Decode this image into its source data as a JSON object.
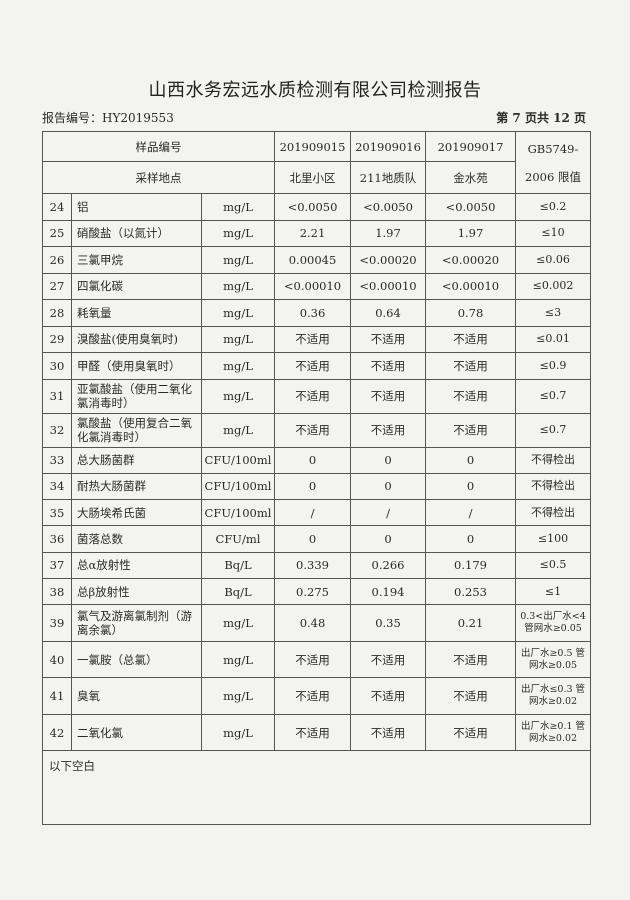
{
  "title": "山西水务宏远水质检测有限公司检测报告",
  "report_no": "报告编号：HY2019553",
  "page_info": "第 7 页共 12 页",
  "header": {
    "sample_no_label": "样品编号",
    "site_label": "采样地点",
    "samples": [
      "201909015",
      "201909016",
      "201909017"
    ],
    "sites": [
      "北里小区",
      "211地质队",
      "金水苑"
    ],
    "standard_line1": "GB5749-",
    "standard_line2": "2006 限值"
  },
  "rows": [
    {
      "no": "24",
      "item": "铝",
      "unit": "mg/L",
      "v1": "<0.0050",
      "v2": "<0.0050",
      "v3": "<0.0050",
      "limit": "≤0.2"
    },
    {
      "no": "25",
      "item": "硝酸盐（以氮计）",
      "unit": "mg/L",
      "v1": "2.21",
      "v2": "1.97",
      "v3": "1.97",
      "limit": "≤10"
    },
    {
      "no": "26",
      "item": "三氯甲烷",
      "unit": "mg/L",
      "v1": "0.00045",
      "v2": "<0.00020",
      "v3": "<0.00020",
      "limit": "≤0.06"
    },
    {
      "no": "27",
      "item": "四氯化碳",
      "unit": "mg/L",
      "v1": "<0.00010",
      "v2": "<0.00010",
      "v3": "<0.00010",
      "limit": "≤0.002"
    },
    {
      "no": "28",
      "item": "耗氧量",
      "unit": "mg/L",
      "v1": "0.36",
      "v2": "0.64",
      "v3": "0.78",
      "limit": "≤3"
    },
    {
      "no": "29",
      "item": "溴酸盐(使用臭氧时)",
      "unit": "mg/L",
      "v1": "不适用",
      "v2": "不适用",
      "v3": "不适用",
      "limit": "≤0.01"
    },
    {
      "no": "30",
      "item": "甲醛（使用臭氧时）",
      "unit": "mg/L",
      "v1": "不适用",
      "v2": "不适用",
      "v3": "不适用",
      "limit": "≤0.9"
    },
    {
      "no": "31",
      "item": "亚氯酸盐（使用二氧化氯消毒时）",
      "unit": "mg/L",
      "v1": "不适用",
      "v2": "不适用",
      "v3": "不适用",
      "limit": "≤0.7"
    },
    {
      "no": "32",
      "item": "氯酸盐（使用复合二氧化氯消毒时）",
      "unit": "mg/L",
      "v1": "不适用",
      "v2": "不适用",
      "v3": "不适用",
      "limit": "≤0.7"
    },
    {
      "no": "33",
      "item": "总大肠菌群",
      "unit": "CFU/100ml",
      "v1": "0",
      "v2": "0",
      "v3": "0",
      "limit": "不得检出"
    },
    {
      "no": "34",
      "item": "耐热大肠菌群",
      "unit": "CFU/100ml",
      "v1": "0",
      "v2": "0",
      "v3": "0",
      "limit": "不得检出"
    },
    {
      "no": "35",
      "item": "大肠埃希氏菌",
      "unit": "CFU/100ml",
      "v1": "/",
      "v2": "/",
      "v3": "/",
      "limit": "不得检出"
    },
    {
      "no": "36",
      "item": "菌落总数",
      "unit": "CFU/ml",
      "v1": "0",
      "v2": "0",
      "v3": "0",
      "limit": "≤100"
    },
    {
      "no": "37",
      "item": "总α放射性",
      "unit": "Bq/L",
      "v1": "0.339",
      "v2": "0.266",
      "v3": "0.179",
      "limit": "≤0.5"
    },
    {
      "no": "38",
      "item": "总β放射性",
      "unit": "Bq/L",
      "v1": "0.275",
      "v2": "0.194",
      "v3": "0.253",
      "limit": "≤1"
    },
    {
      "no": "39",
      "item": "氯气及游离氯制剂（游离余氯）",
      "unit": "mg/L",
      "v1": "0.48",
      "v2": "0.35",
      "v3": "0.21",
      "limit": "0.3<出厂水<4 管网水≥0.05"
    },
    {
      "no": "40",
      "item": "一氯胺（总氯）",
      "unit": "mg/L",
      "v1": "不适用",
      "v2": "不适用",
      "v3": "不适用",
      "limit": "出厂水≥0.5 管网水≥0.05"
    },
    {
      "no": "41",
      "item": "臭氧",
      "unit": "mg/L",
      "v1": "不适用",
      "v2": "不适用",
      "v3": "不适用",
      "limit": "出厂水≤0.3 管网水≥0.02"
    },
    {
      "no": "42",
      "item": "二氧化氯",
      "unit": "mg/L",
      "v1": "不适用",
      "v2": "不适用",
      "v3": "不适用",
      "limit": "出厂水≥0.1 管网水≥0.02"
    }
  ],
  "footer_note": "以下空白"
}
